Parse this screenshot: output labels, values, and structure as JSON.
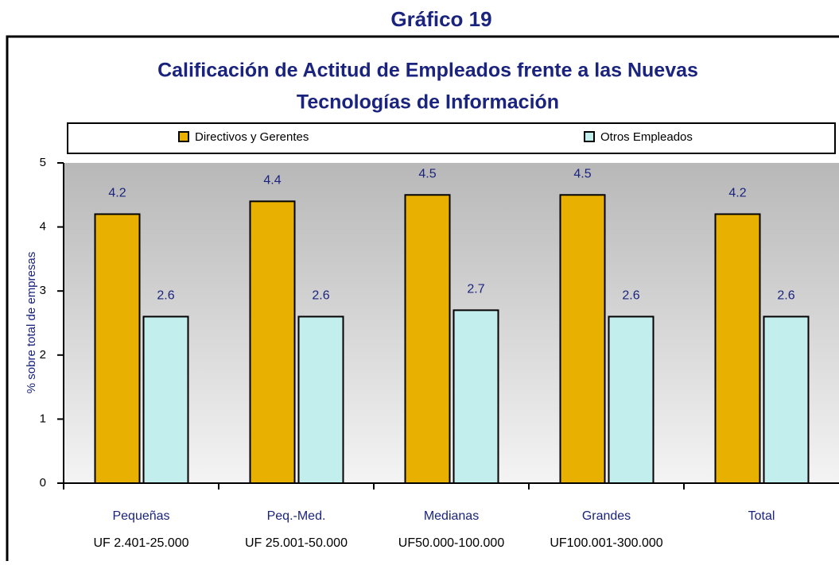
{
  "chart_data": {
    "type": "bar",
    "figure_title": "Gráfico 19",
    "title": [
      "Calificación de Actitud de Empleados frente a las Nuevas",
      "Tecnologías de Información"
    ],
    "y_label": "% sobre total de empresas",
    "categories": [
      [
        "Pequeñas",
        "UF 2.401-25.000"
      ],
      [
        "Peq.-Med.",
        "UF 25.001-50.000"
      ],
      [
        "Medianas",
        "UF50.000-100.000"
      ],
      [
        "Grandes",
        "UF100.001-300.000"
      ],
      [
        "Total"
      ]
    ],
    "series": [
      {
        "name": "Directivos y  Gerentes",
        "color": "#e8b000",
        "values": [
          4.2,
          4.4,
          4.5,
          4.5,
          4.2
        ]
      },
      {
        "name": "Otros Empleados",
        "color": "#c2eeee",
        "values": [
          2.6,
          2.6,
          2.7,
          2.6,
          2.6
        ]
      }
    ],
    "ylim": [
      0,
      5
    ],
    "yticks": [
      0,
      1,
      2,
      3,
      4,
      5
    ],
    "legend": "top"
  }
}
